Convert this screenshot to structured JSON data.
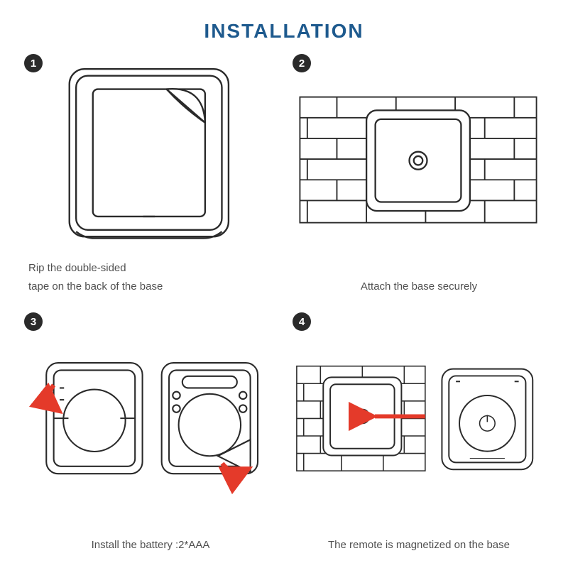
{
  "title": "INSTALLATION",
  "colors": {
    "title": "#1e5a8e",
    "badge_bg": "#2a2a2a",
    "stroke": "#2a2a2a",
    "caption": "#505050",
    "arrow": "#e43a2a",
    "background": "#ffffff"
  },
  "typography": {
    "title_fontsize": 28,
    "title_weight": 700,
    "caption_fontsize": 15
  },
  "steps": [
    {
      "num": "1",
      "caption": "Rip the double-sided\ntape on the back of the base"
    },
    {
      "num": "2",
      "caption": "Attach the base securely"
    },
    {
      "num": "3",
      "caption": "Install the battery :2*AAA"
    },
    {
      "num": "4",
      "caption": "The remote is magnetized on the base"
    }
  ],
  "diagram": {
    "type": "infographic",
    "line_width": 2,
    "corner_radius": 14,
    "panel_count": 4,
    "aspect": "square"
  }
}
